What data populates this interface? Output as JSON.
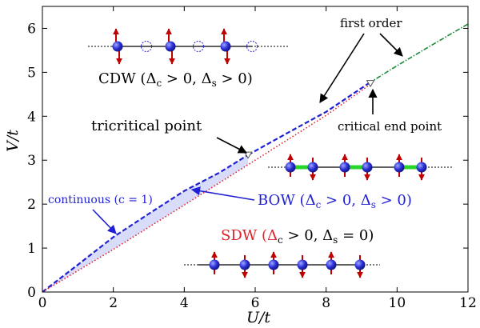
{
  "chart_data": {
    "type": "line",
    "xlabel": "U/t",
    "ylabel": "V/t",
    "xlim": [
      0,
      12
    ],
    "ylim": [
      0,
      6.5
    ],
    "xticks": [
      "0",
      "2",
      "4",
      "6",
      "8",
      "10",
      "12"
    ],
    "yticks": [
      "0",
      "1",
      "2",
      "3",
      "4",
      "5",
      "6"
    ],
    "grid": false,
    "legend": "none",
    "series": [
      {
        "name": "continuous (c = 1)",
        "style": "dashed",
        "color": "#1f1fd6",
        "x": [
          0,
          1,
          2,
          3,
          4,
          5,
          5.8
        ],
        "y": [
          0,
          0.62,
          1.25,
          1.78,
          2.3,
          2.72,
          3.12
        ]
      },
      {
        "name": "",
        "style": "dashed",
        "color": "#1f1fd6",
        "x": [
          5.8,
          7,
          8,
          9.2
        ],
        "y": [
          3.12,
          3.66,
          4.1,
          4.75
        ]
      },
      {
        "name": "",
        "style": "dotted",
        "color": "#e0202a",
        "x": [
          0,
          2,
          4,
          6,
          8,
          9.2
        ],
        "y": [
          0,
          0.97,
          1.98,
          3.0,
          4.02,
          4.7
        ]
      },
      {
        "name": "first order",
        "style": "dashdot",
        "color": "#1a8a3a",
        "x": [
          9.2,
          10,
          11,
          12
        ],
        "y": [
          4.75,
          5.15,
          5.63,
          6.1
        ]
      }
    ],
    "markers": [
      {
        "name": "tricritical point",
        "x": 5.8,
        "y": 3.12
      },
      {
        "name": "critical end point",
        "x": 9.25,
        "y": 4.75
      }
    ],
    "phases": {
      "cdw": {
        "label": "CDW (Δ",
        "sub1": "c",
        "mid": " > 0, Δ",
        "sub2": "s",
        "tail": " > 0)",
        "color": "#000000"
      },
      "bow": {
        "label": "BOW (Δ",
        "sub1": "c",
        "mid": " > 0, Δ",
        "sub2": "s",
        "tail": " > 0)",
        "color": "#1f1fd6"
      },
      "sdw": {
        "label": "SDW (Δ",
        "sub1": "c",
        "mid": " > 0, Δ",
        "sub2": "s",
        "tail": " = 0)",
        "color": "#e0202a"
      }
    },
    "annotations": {
      "first_order": "first order",
      "critical_end_point": "critical end point",
      "tricritical_point": "tricritical point",
      "continuous": "continuous (c = 1)"
    },
    "colors": {
      "lattice_site": "#2a2fd6",
      "spin_arrow": "#c00000",
      "bond": "#2bd62b",
      "shade": "#d8dcf8"
    }
  }
}
